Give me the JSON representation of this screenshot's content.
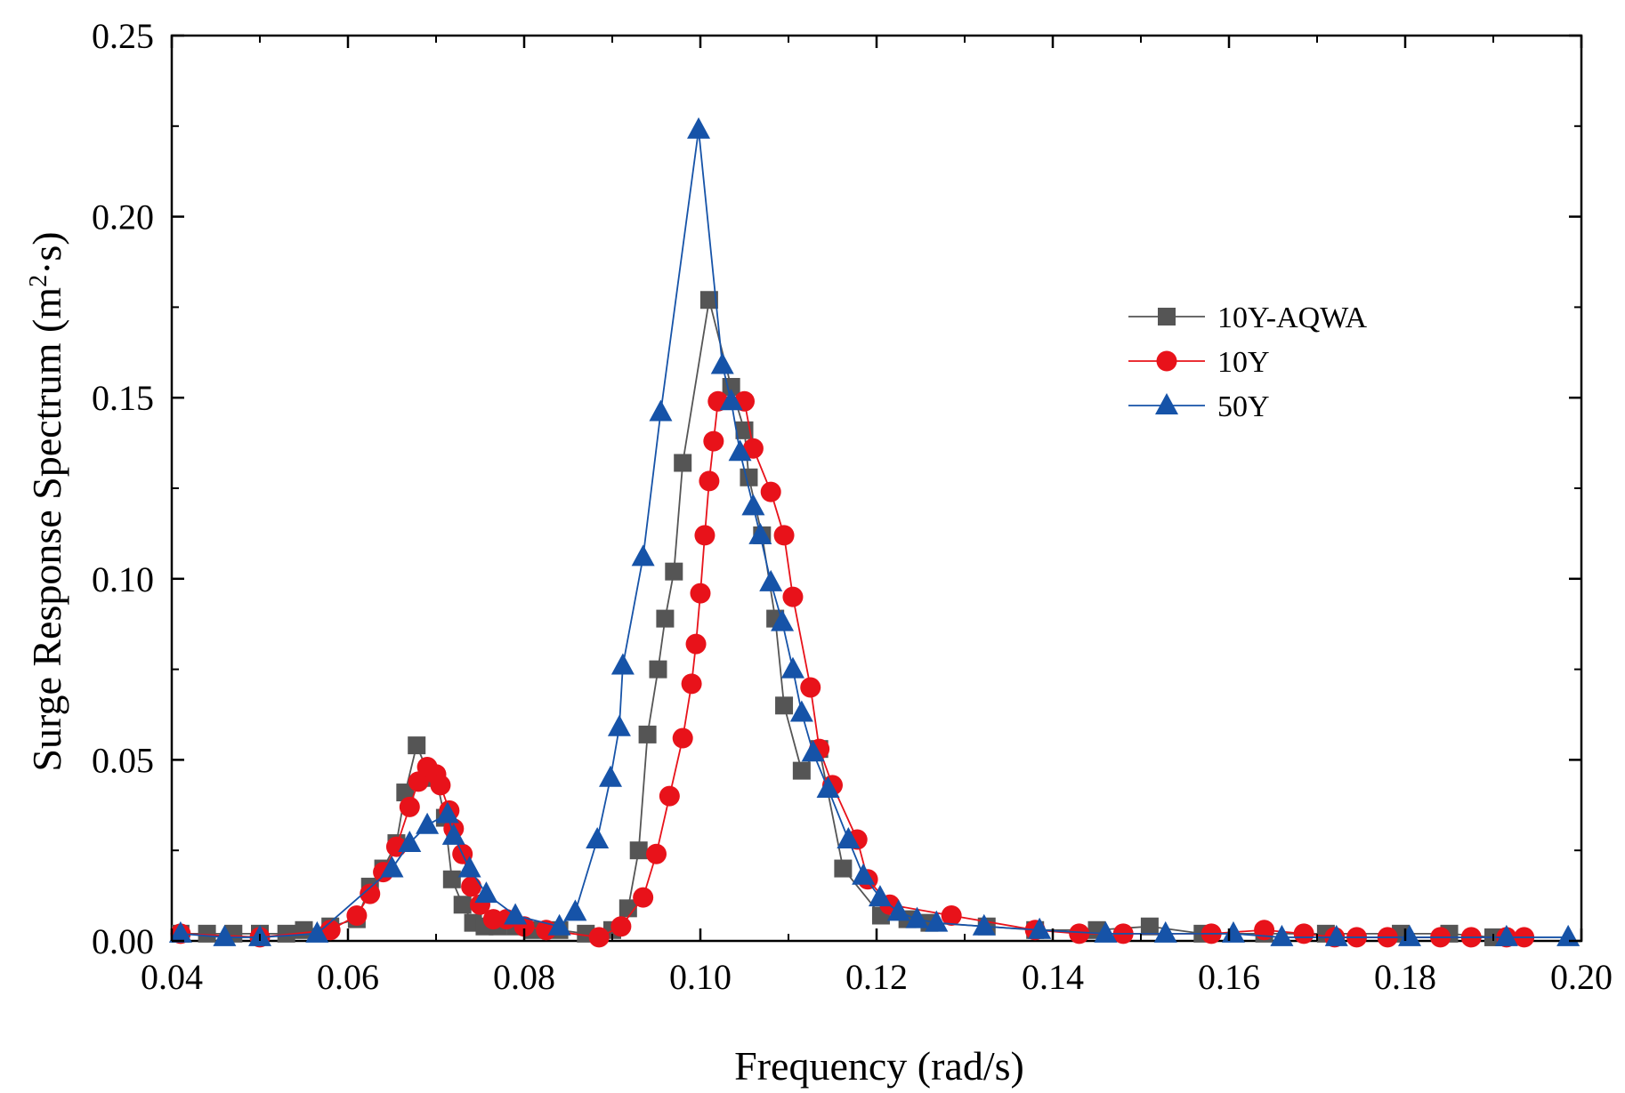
{
  "chart_data": {
    "type": "line",
    "title": "",
    "xlabel": "Frequency (rad/s)",
    "ylabel_main": "Surge Response Spectrum (m",
    "ylabel_sup": "2",
    "ylabel_tail": "·s)",
    "xlim": [
      0.04,
      0.2
    ],
    "ylim": [
      0.0,
      0.25
    ],
    "x_ticks": [
      0.04,
      0.06,
      0.08,
      0.1,
      0.12,
      0.14,
      0.16,
      0.18,
      0.2
    ],
    "x_tick_labels": [
      "0.04",
      "0.06",
      "0.08",
      "0.10",
      "0.12",
      "0.14",
      "0.16",
      "0.18",
      "0.20"
    ],
    "y_ticks": [
      0.0,
      0.05,
      0.1,
      0.15,
      0.2,
      0.25
    ],
    "y_tick_labels": [
      "0.00",
      "0.05",
      "0.10",
      "0.15",
      "0.20",
      "0.25"
    ],
    "legend_position": "upper-right",
    "series": [
      {
        "name": "10Y-AQWA",
        "color": "#555555",
        "marker": "square",
        "x": [
          0.041,
          0.044,
          0.047,
          0.05,
          0.053,
          0.055,
          0.058,
          0.061,
          0.0625,
          0.064,
          0.0655,
          0.0665,
          0.0678,
          0.069,
          0.07,
          0.071,
          0.0718,
          0.073,
          0.0742,
          0.0755,
          0.077,
          0.079,
          0.081,
          0.084,
          0.087,
          0.09,
          0.0918,
          0.093,
          0.094,
          0.0952,
          0.096,
          0.097,
          0.098,
          0.101,
          0.1035,
          0.105,
          0.1055,
          0.107,
          0.1085,
          0.1095,
          0.1115,
          0.1135,
          0.1162,
          0.1205,
          0.1235,
          0.126,
          0.1325,
          0.138,
          0.145,
          0.151,
          0.157,
          0.164,
          0.171,
          0.1795,
          0.185,
          0.19
        ],
        "y": [
          0.002,
          0.002,
          0.002,
          0.002,
          0.002,
          0.003,
          0.004,
          0.006,
          0.015,
          0.02,
          0.027,
          0.041,
          0.054,
          0.047,
          0.045,
          0.034,
          0.017,
          0.01,
          0.005,
          0.004,
          0.004,
          0.004,
          0.003,
          0.003,
          0.002,
          0.003,
          0.009,
          0.025,
          0.057,
          0.075,
          0.089,
          0.102,
          0.132,
          0.177,
          0.153,
          0.141,
          0.128,
          0.112,
          0.089,
          0.065,
          0.047,
          0.053,
          0.02,
          0.007,
          0.006,
          0.005,
          0.004,
          0.003,
          0.003,
          0.004,
          0.002,
          0.002,
          0.002,
          0.002,
          0.002,
          0.001
        ]
      },
      {
        "name": "10Y",
        "color": "#e8121a",
        "marker": "circle",
        "x": [
          0.041,
          0.05,
          0.058,
          0.061,
          0.0625,
          0.064,
          0.0655,
          0.067,
          0.068,
          0.069,
          0.07,
          0.0705,
          0.0715,
          0.072,
          0.073,
          0.074,
          0.075,
          0.0765,
          0.078,
          0.08,
          0.0825,
          0.0885,
          0.091,
          0.0935,
          0.095,
          0.0965,
          0.098,
          0.099,
          0.0995,
          0.1,
          0.1005,
          0.101,
          0.1015,
          0.102,
          0.105,
          0.106,
          0.108,
          0.1095,
          0.1105,
          0.1125,
          0.1135,
          0.115,
          0.1178,
          0.119,
          0.1215,
          0.1285,
          0.138,
          0.143,
          0.148,
          0.158,
          0.164,
          0.1685,
          0.172,
          0.1745,
          0.178,
          0.184,
          0.1875,
          0.1915,
          0.1935
        ],
        "y": [
          0.002,
          0.001,
          0.003,
          0.007,
          0.013,
          0.019,
          0.026,
          0.037,
          0.044,
          0.048,
          0.046,
          0.043,
          0.036,
          0.031,
          0.024,
          0.015,
          0.01,
          0.006,
          0.006,
          0.004,
          0.003,
          0.001,
          0.004,
          0.012,
          0.024,
          0.04,
          0.056,
          0.071,
          0.082,
          0.096,
          0.112,
          0.127,
          0.138,
          0.149,
          0.149,
          0.136,
          0.124,
          0.112,
          0.095,
          0.07,
          0.053,
          0.043,
          0.028,
          0.017,
          0.01,
          0.007,
          0.003,
          0.002,
          0.002,
          0.002,
          0.003,
          0.002,
          0.001,
          0.001,
          0.001,
          0.001,
          0.001,
          0.001,
          0.001
        ]
      },
      {
        "name": "50Y",
        "color": "#1653a8",
        "marker": "triangle",
        "x": [
          0.041,
          0.046,
          0.05,
          0.0565,
          0.065,
          0.067,
          0.069,
          0.0713,
          0.072,
          0.0738,
          0.0757,
          0.079,
          0.084,
          0.0858,
          0.0883,
          0.0898,
          0.0908,
          0.0912,
          0.0935,
          0.0955,
          0.0998,
          0.1025,
          0.1035,
          0.1045,
          0.106,
          0.1068,
          0.108,
          0.1093,
          0.1105,
          0.1115,
          0.1128,
          0.1145,
          0.1168,
          0.1185,
          0.1204,
          0.1225,
          0.1246,
          0.1268,
          0.1322,
          0.1385,
          0.146,
          0.1528,
          0.1605,
          0.166,
          0.1722,
          0.1805,
          0.1915,
          0.1985
        ],
        "y": [
          0.002,
          0.001,
          0.001,
          0.002,
          0.02,
          0.027,
          0.032,
          0.035,
          0.029,
          0.02,
          0.013,
          0.007,
          0.004,
          0.008,
          0.028,
          0.045,
          0.059,
          0.076,
          0.106,
          0.146,
          0.224,
          0.159,
          0.149,
          0.135,
          0.12,
          0.112,
          0.099,
          0.088,
          0.075,
          0.063,
          0.052,
          0.042,
          0.028,
          0.018,
          0.012,
          0.008,
          0.006,
          0.005,
          0.004,
          0.003,
          0.002,
          0.002,
          0.002,
          0.001,
          0.001,
          0.001,
          0.001,
          0.001
        ]
      }
    ]
  }
}
